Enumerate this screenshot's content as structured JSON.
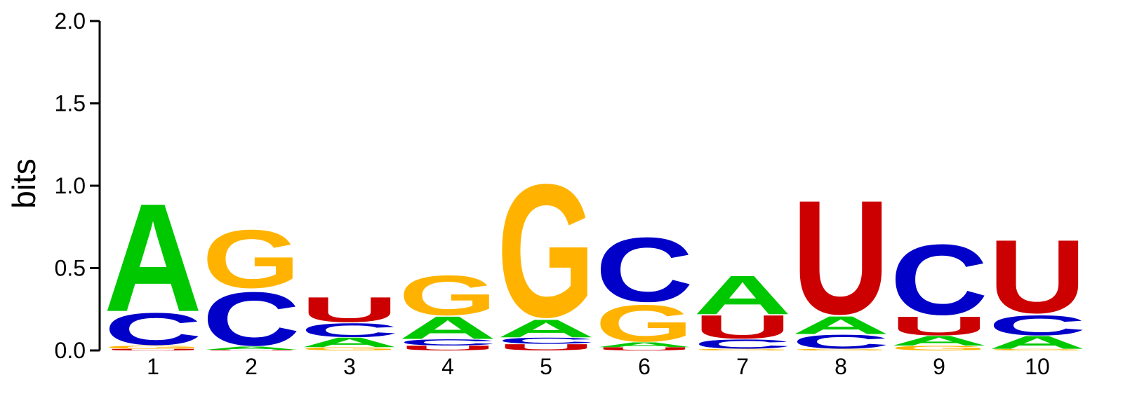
{
  "chart_data": {
    "type": "sequence-logo",
    "ylabel": "bits",
    "ylim": [
      0,
      2.0
    ],
    "yticks": [
      "0.0",
      "0.5",
      "1.0",
      "1.5",
      "2.0"
    ],
    "ytick_values": [
      0,
      0.5,
      1.0,
      1.5,
      2.0
    ],
    "positions": [
      "1",
      "2",
      "3",
      "4",
      "5",
      "6",
      "7",
      "8",
      "9",
      "10"
    ],
    "colors": {
      "A": "#00c800",
      "C": "#0000c8",
      "G": "#ffb300",
      "U": "#cc0000"
    },
    "columns": [
      [
        {
          "letter": "U",
          "height": 0.01
        },
        {
          "letter": "G",
          "height": 0.02
        },
        {
          "letter": "C",
          "height": 0.21
        },
        {
          "letter": "A",
          "height": 0.67
        }
      ],
      [
        {
          "letter": "U",
          "height": 0.004
        },
        {
          "letter": "A",
          "height": 0.02
        },
        {
          "letter": "C",
          "height": 0.35
        },
        {
          "letter": "G",
          "height": 0.38
        }
      ],
      [
        {
          "letter": "G",
          "height": 0.02
        },
        {
          "letter": "A",
          "height": 0.06
        },
        {
          "letter": "C",
          "height": 0.09
        },
        {
          "letter": "U",
          "height": 0.16
        }
      ],
      [
        {
          "letter": "U",
          "height": 0.03
        },
        {
          "letter": "C",
          "height": 0.04
        },
        {
          "letter": "A",
          "height": 0.14
        },
        {
          "letter": "G",
          "height": 0.26
        }
      ],
      [
        {
          "letter": "U",
          "height": 0.04
        },
        {
          "letter": "C",
          "height": 0.04
        },
        {
          "letter": "A",
          "height": 0.11
        },
        {
          "letter": "G",
          "height": 0.87
        }
      ],
      [
        {
          "letter": "U",
          "height": 0.02
        },
        {
          "letter": "A",
          "height": 0.03
        },
        {
          "letter": "G",
          "height": 0.24
        },
        {
          "letter": "C",
          "height": 0.42
        }
      ],
      [
        {
          "letter": "G",
          "height": 0.01
        },
        {
          "letter": "C",
          "height": 0.06
        },
        {
          "letter": "U",
          "height": 0.15
        },
        {
          "letter": "A",
          "height": 0.24
        }
      ],
      [
        {
          "letter": "G",
          "height": 0.01
        },
        {
          "letter": "C",
          "height": 0.09
        },
        {
          "letter": "A",
          "height": 0.11
        },
        {
          "letter": "U",
          "height": 0.73
        }
      ],
      [
        {
          "letter": "G",
          "height": 0.03
        },
        {
          "letter": "A",
          "height": 0.06
        },
        {
          "letter": "U",
          "height": 0.12
        },
        {
          "letter": "C",
          "height": 0.46
        }
      ],
      [
        {
          "letter": "G",
          "height": 0.01
        },
        {
          "letter": "A",
          "height": 0.08
        },
        {
          "letter": "C",
          "height": 0.13
        },
        {
          "letter": "U",
          "height": 0.47
        }
      ]
    ]
  }
}
